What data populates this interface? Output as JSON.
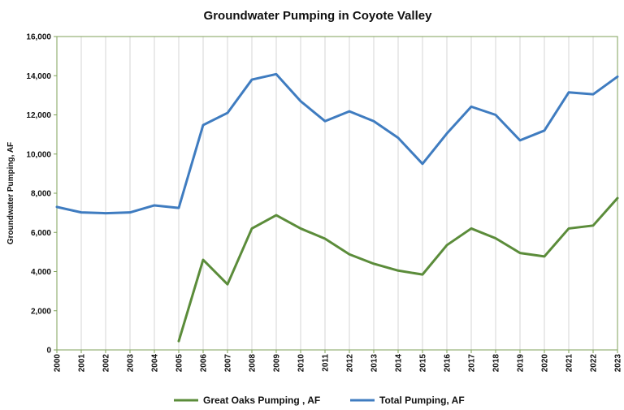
{
  "chart_data": {
    "type": "line",
    "title": "Groundwater Pumping in Coyote Valley",
    "xlabel": "",
    "ylabel": "Groundwater Pumping, AF",
    "ylim": [
      0,
      16000
    ],
    "yticks": [
      0,
      2000,
      4000,
      6000,
      8000,
      10000,
      12000,
      14000,
      16000
    ],
    "ytick_labels": [
      "0",
      "2,000",
      "4,000",
      "6,000",
      "8,000",
      "10,000",
      "12,000",
      "14,000",
      "16,000"
    ],
    "x": [
      "2000",
      "2001",
      "2002",
      "2003",
      "2004",
      "2005",
      "2006",
      "2007",
      "2008",
      "2009",
      "2010",
      "2011",
      "2012",
      "2013",
      "2014",
      "2015",
      "2016",
      "2017",
      "2018",
      "2019",
      "2020",
      "2021",
      "2022",
      "2023"
    ],
    "grid": "vertical",
    "legend_position": "bottom",
    "series": [
      {
        "name": "Great Oaks Pumping , AF",
        "color": "#5b8c3a",
        "values": [
          null,
          null,
          null,
          null,
          null,
          450,
          4600,
          3350,
          6200,
          6880,
          6200,
          5680,
          4880,
          4400,
          4050,
          3850,
          5350,
          6200,
          5700,
          4950,
          4770,
          6200,
          6350,
          7750
        ]
      },
      {
        "name": "Total Pumping, AF",
        "color": "#3f7cc0",
        "values": [
          7300,
          7020,
          6980,
          7020,
          7380,
          7250,
          11480,
          12100,
          13800,
          14080,
          12700,
          11680,
          12180,
          11680,
          10830,
          9500,
          11050,
          12420,
          12000,
          10700,
          11200,
          13150,
          13050,
          13950
        ]
      }
    ]
  }
}
